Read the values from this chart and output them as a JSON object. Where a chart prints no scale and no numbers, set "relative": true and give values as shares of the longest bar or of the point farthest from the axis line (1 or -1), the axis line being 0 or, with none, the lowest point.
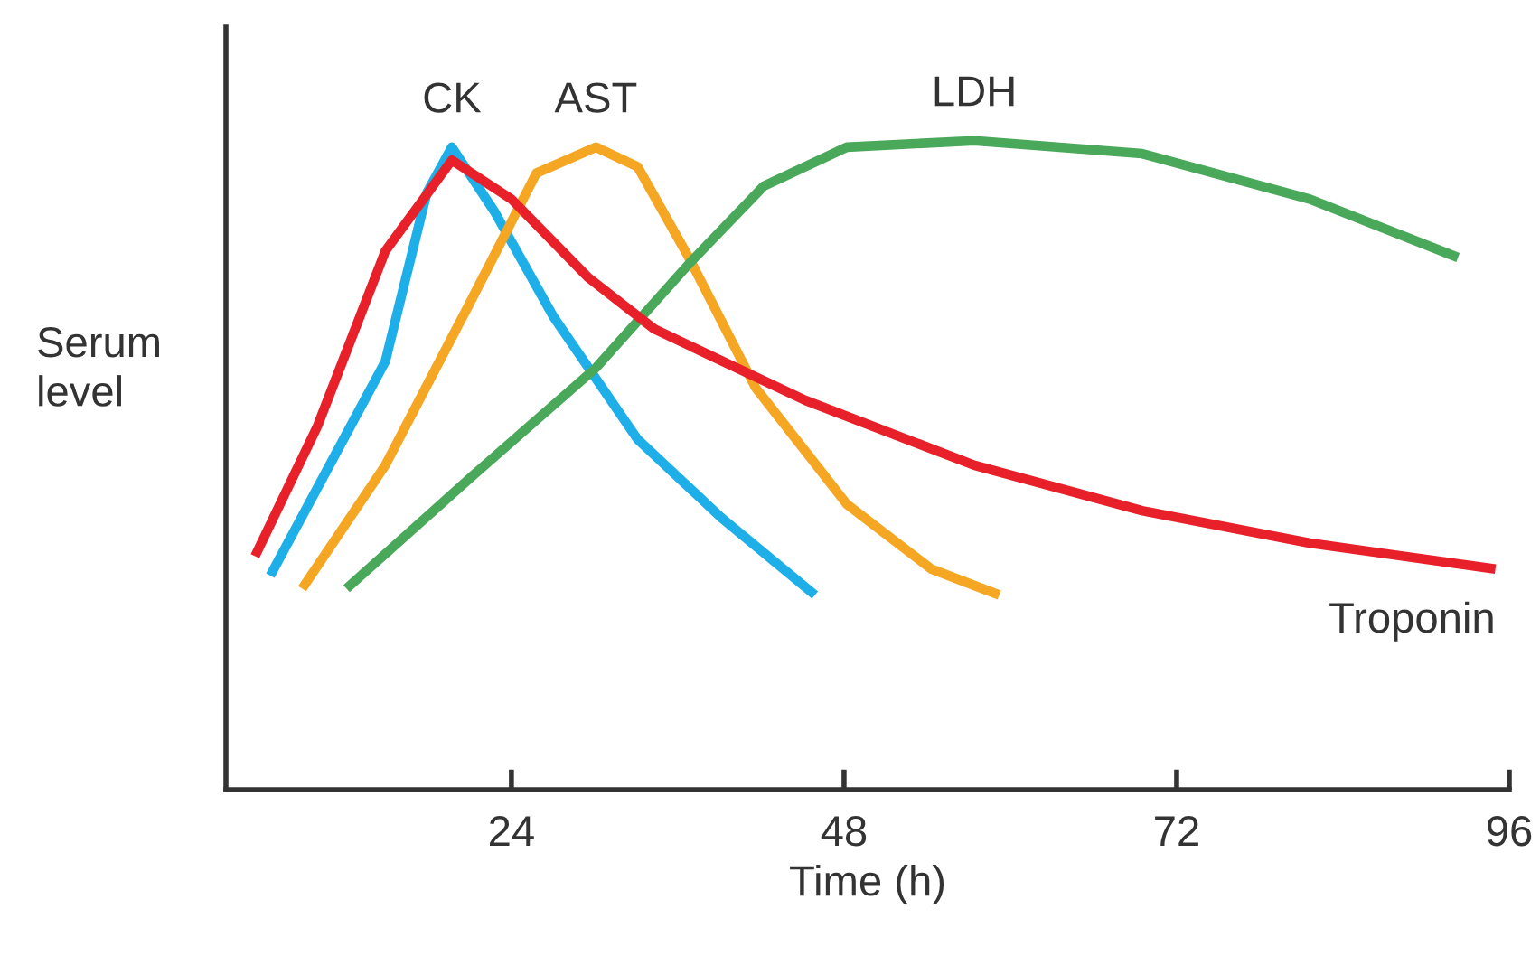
{
  "chart_data": {
    "type": "line",
    "xlabel": "Time (h)",
    "ylabel": "Serum\nlevel",
    "relative": true,
    "xlim": [
      3.4,
      96
    ],
    "xticks": [
      24,
      48,
      72,
      96
    ],
    "grid": false,
    "legend": false,
    "marker": "none",
    "line_style": "solid",
    "series": [
      {
        "name": "CK",
        "color": "#1eaee8",
        "x": [
          6.6,
          14.9,
          17.9,
          19.7,
          22.8,
          27.0,
          33.1,
          39.1,
          45.9
        ],
        "values": [
          0.33,
          0.66,
          0.92,
          0.99,
          0.89,
          0.73,
          0.54,
          0.42,
          0.3
        ]
      },
      {
        "name": "AST",
        "color": "#f5a623",
        "x": [
          8.9,
          14.9,
          21.0,
          25.8,
          30.1,
          33.1,
          36.8,
          41.6,
          48.2,
          54.3,
          59.2
        ],
        "values": [
          0.31,
          0.5,
          0.75,
          0.95,
          0.99,
          0.96,
          0.82,
          0.62,
          0.44,
          0.34,
          0.3
        ]
      },
      {
        "name": "LDH",
        "color": "#4aa85a",
        "x": [
          12.1,
          21.0,
          30.1,
          36.8,
          42.2,
          48.2,
          57.4,
          69.5,
          81.6,
          92.3
        ],
        "values": [
          0.31,
          0.48,
          0.65,
          0.81,
          0.93,
          0.99,
          1.0,
          0.98,
          0.91,
          0.82
        ]
      },
      {
        "name": "Troponin",
        "color": "#e8202a",
        "x": [
          5.5,
          10.0,
          14.9,
          19.7,
          24.0,
          29.5,
          34.3,
          45.2,
          57.4,
          69.5,
          81.6,
          95.0
        ],
        "values": [
          0.36,
          0.56,
          0.83,
          0.97,
          0.91,
          0.79,
          0.71,
          0.6,
          0.5,
          0.43,
          0.38,
          0.34
        ]
      }
    ]
  }
}
